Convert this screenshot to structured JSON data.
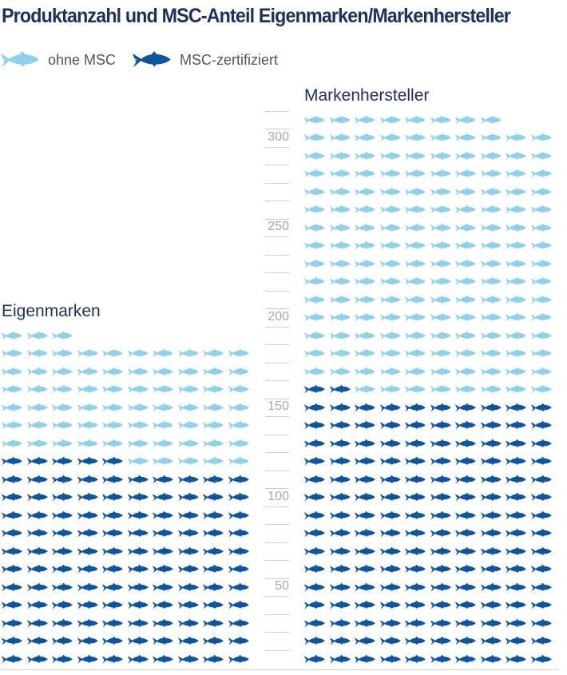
{
  "header": {
    "title": "Produktanzahl und MSC-Anteil Eigenmarken/Markenhersteller"
  },
  "legend": {
    "items": [
      {
        "label": "ohne MSC",
        "icon": "fish-icon",
        "color": "#8fd0ea"
      },
      {
        "label": "MSC-zertifiziert",
        "icon": "fish-icon",
        "color": "#0e55a1"
      }
    ]
  },
  "groups": [
    {
      "label": "Eigenmarken"
    },
    {
      "label": "Markenhersteller"
    }
  ],
  "axis": {
    "ticks": [
      "300",
      "250",
      "200",
      "150",
      "100",
      "50"
    ]
  },
  "colors": {
    "ohne_msc": "#8fd0ea",
    "msc": "#0e55a1",
    "title": "#1d3160",
    "axis": "#a8a8a8"
  },
  "chart_data": {
    "type": "bar",
    "subtype": "pictogram (1 fish = 1 product, 10 per row)",
    "title": "Produktanzahl und MSC-Anteil Eigenmarken/Markenhersteller",
    "categories": [
      "Eigenmarken",
      "Markenhersteller"
    ],
    "series": [
      {
        "name": "MSC-zertifiziert",
        "values": [
          115,
          152
        ]
      },
      {
        "name": "ohne MSC",
        "values": [
          68,
          156
        ]
      }
    ],
    "totals": [
      183,
      308
    ],
    "stacked": true,
    "xlabel": "",
    "ylabel": "",
    "yticks": [
      50,
      100,
      150,
      200,
      250,
      300
    ],
    "ylim": [
      0,
      310
    ],
    "grid": false,
    "legend_position": "top-left",
    "units_per_icon": 1,
    "icons_per_row": 10
  }
}
